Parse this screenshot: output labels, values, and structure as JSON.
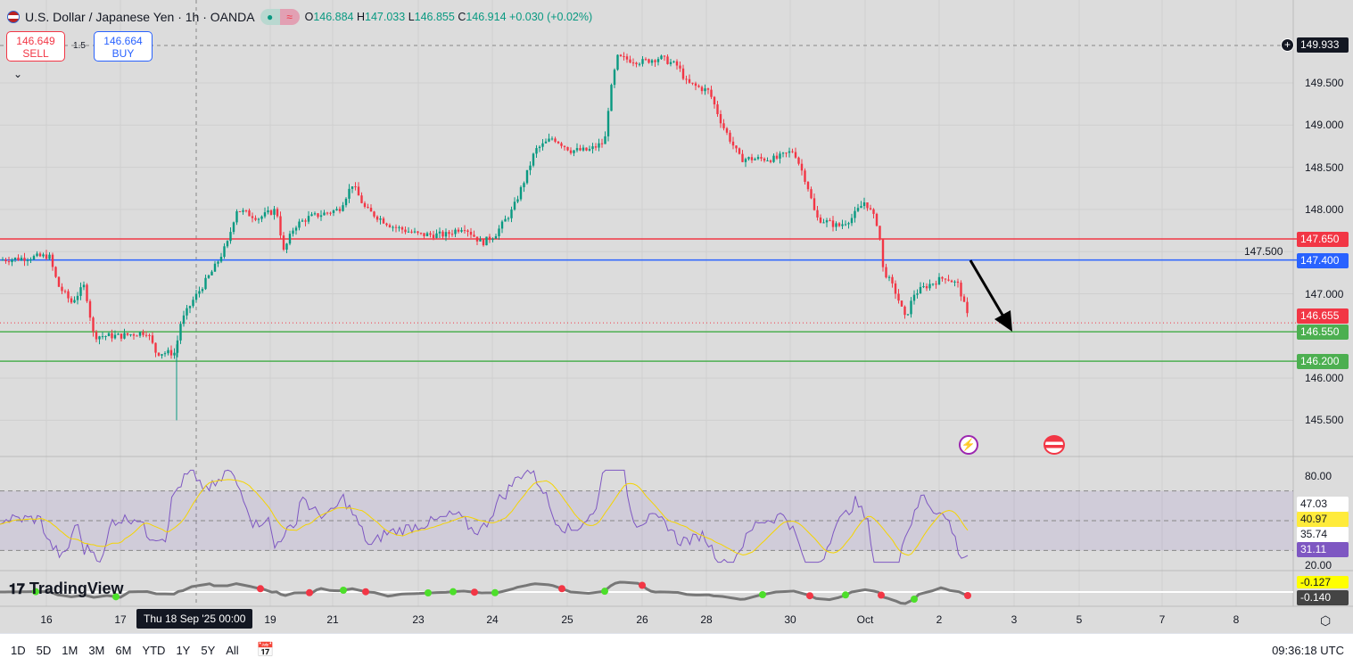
{
  "header": {
    "symbol": "U.S. Dollar / Japanese Yen · 1h · OANDA",
    "o_label": "O",
    "o": "146.884",
    "h_label": "H",
    "h": "147.033",
    "l_label": "L",
    "l": "146.855",
    "c_label": "C",
    "c": "146.914",
    "change": "+0.030 (+0.02%)"
  },
  "trade": {
    "sell_price": "146.649",
    "sell_label": "SELL",
    "spread": "1.5",
    "buy_price": "146.664",
    "buy_label": "BUY"
  },
  "price_axis": {
    "ticks": [
      "149.500",
      "149.000",
      "148.500",
      "148.000",
      "147.500",
      "147.000",
      "146.000",
      "145.500"
    ],
    "crosshair_price": "149.933"
  },
  "levels": [
    {
      "price": "147.650",
      "color": "#f23645"
    },
    {
      "price": "147.400",
      "color": "#2962ff"
    },
    {
      "price": "146.550",
      "color": "#4caf50"
    },
    {
      "price": "146.200",
      "color": "#4caf50"
    }
  ],
  "last_price": {
    "value": "146.655",
    "color": "#f23645"
  },
  "rsi_axis": {
    "ticks": [
      "80.00",
      "20.00"
    ],
    "labels": [
      "47.03",
      "40.97",
      "35.74",
      "31.11"
    ]
  },
  "osc_labels": [
    "-0.127",
    "-0.140"
  ],
  "x_axis": {
    "ticks": [
      "16",
      "17",
      "19",
      "21",
      "23",
      "24",
      "25",
      "26",
      "28",
      "30",
      "Oct",
      "2",
      "3",
      "5",
      "7",
      "8"
    ],
    "crosshair_time": "Thu 18 Sep '25   00:00"
  },
  "brand": "TradingView",
  "bottom": {
    "ranges": [
      "1D",
      "5D",
      "1M",
      "3M",
      "6M",
      "YTD",
      "1Y",
      "5Y",
      "All"
    ],
    "clock": "09:36:18 UTC"
  },
  "colors": {
    "up": "#089981",
    "down": "#f23645",
    "rsi": "#7e57c2",
    "rsi_ma": "#f5d400"
  }
}
